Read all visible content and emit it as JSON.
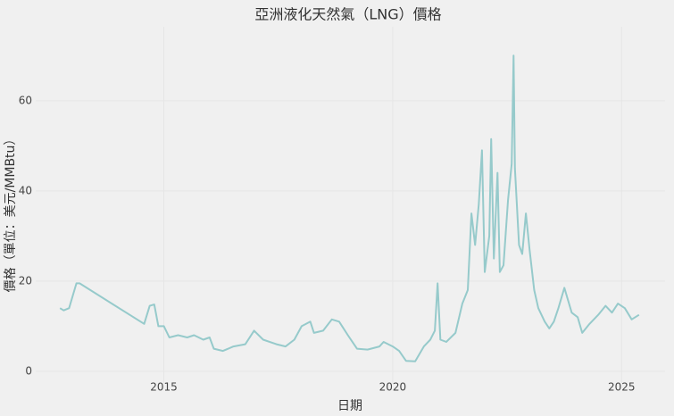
{
  "chart_data": {
    "type": "line",
    "title": "亞洲液化天然氣（LNG）價格",
    "x_label": "日期",
    "y_label": "價格（單位：美元/MMBtu）",
    "x": [
      2012.73,
      2012.81,
      2012.93,
      2013.09,
      2013.16,
      2014.57,
      2014.69,
      2014.79,
      2014.88,
      2015.0,
      2015.12,
      2015.31,
      2015.51,
      2015.66,
      2015.86,
      2016.0,
      2016.09,
      2016.29,
      2016.52,
      2016.78,
      2016.97,
      2017.17,
      2017.46,
      2017.66,
      2017.85,
      2018.01,
      2018.2,
      2018.28,
      2018.48,
      2018.67,
      2018.83,
      2019.02,
      2019.22,
      2019.45,
      2019.71,
      2019.8,
      2020.0,
      2020.14,
      2020.29,
      2020.49,
      2020.68,
      2020.82,
      2020.92,
      2020.98,
      2021.04,
      2021.17,
      2021.37,
      2021.52,
      2021.64,
      2021.72,
      2021.8,
      2021.88,
      2021.95,
      2022.01,
      2022.11,
      2022.15,
      2022.21,
      2022.29,
      2022.34,
      2022.42,
      2022.52,
      2022.6,
      2022.64,
      2022.67,
      2022.76,
      2022.83,
      2022.91,
      2022.99,
      2023.09,
      2023.18,
      2023.32,
      2023.42,
      2023.52,
      2023.62,
      2023.75,
      2023.91,
      2024.04,
      2024.14,
      2024.3,
      2024.49,
      2024.65,
      2024.79,
      2024.92,
      2025.07,
      2025.22,
      2025.38
    ],
    "series": [
      {
        "color": "#96cacb",
        "values": [
          14,
          13.5,
          14,
          19.5,
          19.5,
          10.5,
          14.5,
          14.8,
          10,
          10,
          7.5,
          8,
          7.5,
          8,
          7,
          7.5,
          5,
          4.5,
          5.5,
          6,
          9,
          7,
          6,
          5.5,
          7,
          10,
          11,
          8.5,
          9,
          11.5,
          11,
          8,
          5,
          4.8,
          5.5,
          6.5,
          5.5,
          4.5,
          2.3,
          2.2,
          5.5,
          7,
          9,
          19.5,
          7,
          6.5,
          8.5,
          15,
          18,
          35,
          28,
          37,
          49,
          22,
          30,
          51.5,
          25,
          44,
          22,
          23.5,
          38,
          46,
          70,
          45,
          28,
          26,
          35,
          27,
          18,
          14,
          11,
          9.5,
          11,
          14,
          18.5,
          13,
          12,
          8.5,
          10.5,
          12.5,
          14.5,
          13,
          15,
          14,
          11.5,
          12.5
        ]
      }
    ],
    "xlim": [
      2012.2,
      2025.95
    ],
    "xticks": [
      2015,
      2020,
      2025
    ],
    "ylim": [
      -2.8,
      76.4
    ],
    "yticks": [
      0,
      20,
      40,
      60
    ],
    "grid": true
  }
}
